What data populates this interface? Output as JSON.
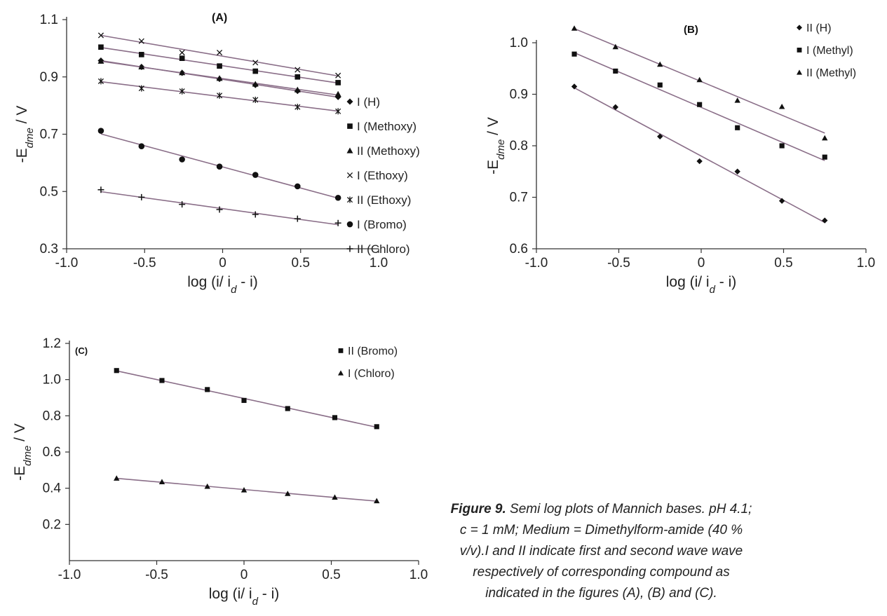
{
  "chart_data": [
    {
      "type": "scatter",
      "panel": "A",
      "title": "(A)",
      "xlabel": "log (i/ i_d - i)",
      "ylabel": "-E_dme / V",
      "xlim": [
        -1.0,
        1.0
      ],
      "ylim": [
        0.3,
        1.1
      ],
      "xticks": [
        "-1.0",
        "-0.5",
        "0",
        "0.5",
        "1.0"
      ],
      "yticks": [
        "0.3",
        "0.5",
        "0.7",
        "0.9",
        "1.1"
      ],
      "legend_position": "right",
      "grid": false,
      "series": [
        {
          "name": "I (H)",
          "marker": "diamond",
          "x": [
            -0.78,
            -0.52,
            -0.26,
            -0.02,
            0.21,
            0.48,
            0.74
          ],
          "y": [
            0.957,
            0.935,
            0.914,
            0.893,
            0.872,
            0.851,
            0.83
          ]
        },
        {
          "name": "I (Methoxy)",
          "marker": "square",
          "x": [
            -0.78,
            -0.52,
            -0.26,
            -0.02,
            0.21,
            0.48,
            0.74
          ],
          "y": [
            1.004,
            0.978,
            0.965,
            0.938,
            0.92,
            0.9,
            0.88
          ]
        },
        {
          "name": "II (Methoxy)",
          "marker": "triangle",
          "x": [
            -0.78,
            -0.52,
            -0.26,
            -0.02,
            0.21,
            0.48,
            0.74
          ],
          "y": [
            0.955,
            0.935,
            0.915,
            0.895,
            0.875,
            0.855,
            0.84
          ]
        },
        {
          "name": "I (Ethoxy)",
          "marker": "x",
          "x": [
            -0.78,
            -0.52,
            -0.26,
            -0.02,
            0.21,
            0.48,
            0.74
          ],
          "y": [
            1.045,
            1.025,
            0.985,
            0.985,
            0.95,
            0.925,
            0.905
          ]
        },
        {
          "name": "II (Ethoxy)",
          "marker": "star",
          "x": [
            -0.78,
            -0.52,
            -0.26,
            -0.02,
            0.21,
            0.48,
            0.74
          ],
          "y": [
            0.885,
            0.86,
            0.85,
            0.835,
            0.82,
            0.795,
            0.78
          ]
        },
        {
          "name": "I (Bromo)",
          "marker": "circle",
          "x": [
            -0.78,
            -0.52,
            -0.26,
            -0.02,
            0.21,
            0.48,
            0.74
          ],
          "y": [
            0.712,
            0.658,
            0.612,
            0.587,
            0.558,
            0.518,
            0.478
          ]
        },
        {
          "name": "II (Chloro)",
          "marker": "plus",
          "x": [
            -0.78,
            -0.52,
            -0.26,
            -0.02,
            0.21,
            0.48,
            0.74
          ],
          "y": [
            0.506,
            0.48,
            0.455,
            0.437,
            0.42,
            0.405,
            0.39
          ]
        }
      ]
    },
    {
      "type": "scatter",
      "panel": "B",
      "title": "(B)",
      "xlabel": "log (i/ i_d - i)",
      "ylabel": "-E_dme / V",
      "xlim": [
        -1.0,
        1.0
      ],
      "ylim": [
        0.6,
        1.0
      ],
      "xticks": [
        "-1.0",
        "-0.5",
        "0",
        "0.5",
        "1.0"
      ],
      "yticks": [
        "0.6",
        "0.7",
        "0.8",
        "0.9",
        "1.0"
      ],
      "legend_position": "top-right",
      "grid": false,
      "series": [
        {
          "name": "II (H)",
          "marker": "diamond",
          "x": [
            -0.77,
            -0.52,
            -0.25,
            -0.01,
            0.22,
            0.49,
            0.75
          ],
          "y": [
            0.915,
            0.875,
            0.818,
            0.77,
            0.75,
            0.693,
            0.655
          ]
        },
        {
          "name": "I (Methyl)",
          "marker": "square",
          "x": [
            -0.77,
            -0.52,
            -0.25,
            -0.01,
            0.22,
            0.49,
            0.75
          ],
          "y": [
            0.978,
            0.945,
            0.918,
            0.88,
            0.835,
            0.8,
            0.778
          ]
        },
        {
          "name": "II (Methyl)",
          "marker": "triangle",
          "x": [
            -0.77,
            -0.52,
            -0.25,
            -0.01,
            0.22,
            0.49,
            0.75
          ],
          "y": [
            1.028,
            0.992,
            0.958,
            0.928,
            0.888,
            0.876,
            0.815
          ]
        }
      ]
    },
    {
      "type": "scatter",
      "panel": "C",
      "title": "(C)",
      "xlabel": "log (i/ i_d - i)",
      "ylabel": "-E_dme / V",
      "xlim": [
        -1.0,
        1.0
      ],
      "ylim": [
        0.0,
        1.2
      ],
      "xticks": [
        "-1.0",
        "-0.5",
        "0",
        "0.5",
        "1.0"
      ],
      "yticks": [
        "0.2",
        "0.4",
        "0.6",
        "0.8",
        "1.0",
        "1.2"
      ],
      "legend_position": "top-right",
      "grid": false,
      "series": [
        {
          "name": "II (Bromo)",
          "marker": "square",
          "x": [
            -0.73,
            -0.47,
            -0.21,
            0.0,
            0.25,
            0.52,
            0.76
          ],
          "y": [
            1.05,
            0.995,
            0.945,
            0.885,
            0.84,
            0.79,
            0.74
          ]
        },
        {
          "name": "I (Chloro)",
          "marker": "triangle",
          "x": [
            -0.73,
            -0.47,
            -0.21,
            0.0,
            0.25,
            0.52,
            0.76
          ],
          "y": [
            0.455,
            0.435,
            0.41,
            0.39,
            0.37,
            0.35,
            0.33
          ]
        }
      ]
    }
  ],
  "caption": {
    "label": "Figure 9.",
    "text": "Semi log plots of Mannich bases. pH 4.1; c = 1 mM; Medium = Dimethylform-amide (40 % v/v).I and II indicate first and second wave wave respectively of corresponding compound as indicated in the figures (A), (B) and (C)."
  }
}
